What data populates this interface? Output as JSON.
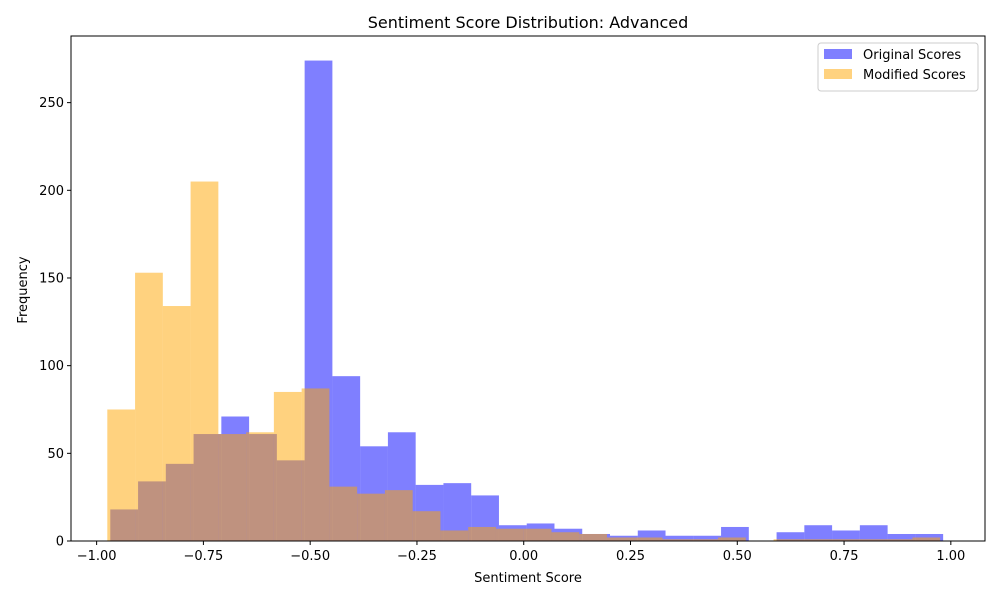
{
  "chart_data": {
    "type": "bar",
    "title": "Sentiment Score Distribution: Advanced",
    "xlabel": "Sentiment Score",
    "ylabel": "Frequency",
    "xlim": [
      -1.06,
      1.08
    ],
    "ylim": [
      0,
      288
    ],
    "xticks": [
      -1.0,
      -0.75,
      -0.5,
      -0.25,
      0.0,
      0.25,
      0.5,
      0.75,
      1.0
    ],
    "xtick_labels": [
      "−1.00",
      "−0.75",
      "−0.50",
      "−0.25",
      "0.00",
      "0.25",
      "0.50",
      "0.75",
      "1.00"
    ],
    "yticks": [
      0,
      50,
      100,
      150,
      200,
      250
    ],
    "ytick_labels": [
      "0",
      "50",
      "100",
      "150",
      "200",
      "250"
    ],
    "legend_position": "top-right",
    "grid": false,
    "series": [
      {
        "name": "Original Scores",
        "color": "#0000ff",
        "alpha": 0.5,
        "bin_starts": [
          -0.968,
          -0.903,
          -0.838,
          -0.773,
          -0.708,
          -0.643,
          -0.578,
          -0.513,
          -0.448,
          -0.383,
          -0.318,
          -0.253,
          -0.188,
          -0.123,
          -0.058,
          0.007,
          0.072,
          0.137,
          0.202,
          0.267,
          0.332,
          0.397,
          0.462,
          0.527,
          0.592,
          0.657,
          0.722,
          0.787,
          0.852,
          0.917
        ],
        "bin_width": 0.065,
        "values": [
          18,
          34,
          44,
          61,
          71,
          61,
          46,
          274,
          94,
          54,
          62,
          32,
          33,
          26,
          9,
          10,
          7,
          4,
          3,
          6,
          3,
          3,
          8,
          0,
          5,
          9,
          6,
          9,
          4,
          4
        ]
      },
      {
        "name": "Modified Scores",
        "color": "#ffa500",
        "alpha": 0.5,
        "bin_starts": [
          -0.975,
          -0.91,
          -0.845,
          -0.78,
          -0.715,
          -0.65,
          -0.585,
          -0.52,
          -0.455,
          -0.39,
          -0.325,
          -0.26,
          -0.195,
          -0.13,
          -0.065,
          0.0,
          0.065,
          0.13,
          0.195,
          0.26,
          0.325,
          0.39,
          0.455,
          0.52,
          0.585,
          0.65,
          0.715,
          0.78,
          0.845,
          0.91
        ],
        "bin_width": 0.065,
        "values": [
          75,
          153,
          134,
          205,
          61,
          62,
          85,
          87,
          31,
          27,
          29,
          17,
          6,
          8,
          7,
          7,
          5,
          4,
          2,
          2,
          1,
          1,
          2,
          0,
          1,
          1,
          1,
          1,
          1,
          2
        ]
      }
    ]
  }
}
